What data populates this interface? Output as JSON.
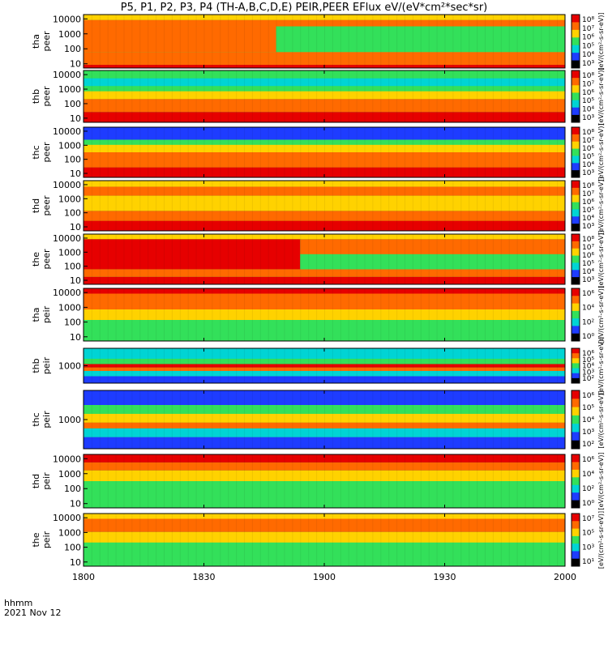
{
  "figure": {
    "title": "P5, P1, P2, P3, P4 (TH-A,B,C,D,E) PEIR,PEER EFlux eV/(eV*cm²*sec*sr)",
    "time_label": "hhmm",
    "date_label": "2021 Nov 12"
  },
  "colorbar_unit": "[eV/(cm²-s-sr-eV)]",
  "colors": {
    "red": "#e60000",
    "orange": "#ff6a00",
    "yellow": "#ffd200",
    "green": "#33e05a",
    "cyan": "#00d4d4",
    "blue": "#1e3cff",
    "black": "#000000"
  },
  "chart_data": [
    {
      "type": "heatmap",
      "name": "tha peer",
      "ylabel": [
        "tha",
        "peer"
      ],
      "ytick_labels": [
        "10",
        "100",
        "1000",
        "10000"
      ],
      "colorbar_ticks": [
        "10³",
        "10⁴",
        "10⁵",
        "10⁶",
        "10⁷",
        "10⁸"
      ],
      "x": [
        "1800",
        "1830",
        "1900",
        "1930",
        "2000"
      ],
      "bands": [
        {
          "x": [
            0,
            100
          ],
          "y": [
            0,
            0.06
          ],
          "color": "red"
        },
        {
          "x": [
            0,
            100
          ],
          "y": [
            0.06,
            0.3
          ],
          "color": "orange"
        },
        {
          "x": [
            0,
            40
          ],
          "y": [
            0.3,
            0.78
          ],
          "color": "orange"
        },
        {
          "x": [
            40,
            100
          ],
          "y": [
            0.3,
            0.78
          ],
          "color": "green"
        },
        {
          "x": [
            0,
            100
          ],
          "y": [
            0.78,
            0.9
          ],
          "color": "orange"
        },
        {
          "x": [
            0,
            100
          ],
          "y": [
            0.9,
            1
          ],
          "color": "yellow"
        }
      ]
    },
    {
      "type": "heatmap",
      "name": "thb peer",
      "ylabel": [
        "thb",
        "peer"
      ],
      "ytick_labels": [
        "10",
        "100",
        "1000",
        "10000"
      ],
      "colorbar_ticks": [
        "10³",
        "10⁴",
        "10⁵",
        "10⁶",
        "10⁷",
        "10⁸"
      ],
      "x": [
        "1800",
        "1830",
        "1900",
        "1930",
        "2000"
      ],
      "bands": [
        {
          "x": [
            0,
            100
          ],
          "y": [
            0,
            0.2
          ],
          "color": "red"
        },
        {
          "x": [
            0,
            100
          ],
          "y": [
            0.2,
            0.45
          ],
          "color": "orange"
        },
        {
          "x": [
            0,
            100
          ],
          "y": [
            0.45,
            0.6
          ],
          "color": "yellow"
        },
        {
          "x": [
            0,
            100
          ],
          "y": [
            0.6,
            0.7
          ],
          "color": "green"
        },
        {
          "x": [
            0,
            100
          ],
          "y": [
            0.7,
            0.85
          ],
          "color": "cyan"
        },
        {
          "x": [
            0,
            100
          ],
          "y": [
            0.85,
            1
          ],
          "color": "green"
        }
      ]
    },
    {
      "type": "heatmap",
      "name": "thc peer",
      "ylabel": [
        "thc",
        "peer"
      ],
      "ytick_labels": [
        "10",
        "100",
        "1000",
        "10000"
      ],
      "colorbar_ticks": [
        "10³",
        "10⁴",
        "10⁵",
        "10⁶",
        "10⁷",
        "10⁸"
      ],
      "x": [
        "1800",
        "1830",
        "1900",
        "1930",
        "2000"
      ],
      "bands": [
        {
          "x": [
            0,
            100
          ],
          "y": [
            0,
            0.2
          ],
          "color": "red"
        },
        {
          "x": [
            0,
            100
          ],
          "y": [
            0.2,
            0.5
          ],
          "color": "orange"
        },
        {
          "x": [
            0,
            100
          ],
          "y": [
            0.5,
            0.65
          ],
          "color": "yellow"
        },
        {
          "x": [
            0,
            100
          ],
          "y": [
            0.65,
            0.75
          ],
          "color": "green"
        },
        {
          "x": [
            0,
            100
          ],
          "y": [
            0.75,
            1
          ],
          "color": "blue"
        }
      ]
    },
    {
      "type": "heatmap",
      "name": "thd peer",
      "ylabel": [
        "thd",
        "peer"
      ],
      "ytick_labels": [
        "10",
        "100",
        "1000",
        "10000"
      ],
      "colorbar_ticks": [
        "10³",
        "10⁴",
        "10⁵",
        "10⁶",
        "10⁷",
        "10⁸"
      ],
      "x": [
        "1800",
        "1830",
        "1900",
        "1930",
        "2000"
      ],
      "bands": [
        {
          "x": [
            0,
            100
          ],
          "y": [
            0,
            0.2
          ],
          "color": "red"
        },
        {
          "x": [
            0,
            100
          ],
          "y": [
            0.2,
            0.4
          ],
          "color": "orange"
        },
        {
          "x": [
            0,
            100
          ],
          "y": [
            0.4,
            0.7
          ],
          "color": "yellow"
        },
        {
          "x": [
            0,
            100
          ],
          "y": [
            0.7,
            0.88
          ],
          "color": "orange"
        },
        {
          "x": [
            0,
            100
          ],
          "y": [
            0.88,
            1
          ],
          "color": "yellow"
        }
      ]
    },
    {
      "type": "heatmap",
      "name": "the peer",
      "ylabel": [
        "the",
        "peer"
      ],
      "ytick_labels": [
        "10",
        "100",
        "1000",
        "10000"
      ],
      "colorbar_ticks": [
        "10³",
        "10⁴",
        "10⁵",
        "10⁶",
        "10⁷",
        "10⁸"
      ],
      "x": [
        "1800",
        "1830",
        "1900",
        "1930",
        "2000"
      ],
      "bands": [
        {
          "x": [
            0,
            100
          ],
          "y": [
            0,
            0.15
          ],
          "color": "red"
        },
        {
          "x": [
            0,
            100
          ],
          "y": [
            0.15,
            0.3
          ],
          "color": "orange"
        },
        {
          "x": [
            0,
            45
          ],
          "y": [
            0.3,
            0.9
          ],
          "color": "red"
        },
        {
          "x": [
            45,
            100
          ],
          "y": [
            0.3,
            0.6
          ],
          "color": "green"
        },
        {
          "x": [
            45,
            100
          ],
          "y": [
            0.6,
            0.9
          ],
          "color": "orange"
        },
        {
          "x": [
            0,
            100
          ],
          "y": [
            0.9,
            1
          ],
          "color": "yellow"
        }
      ]
    },
    {
      "type": "heatmap",
      "name": "tha peir",
      "ylabel": [
        "tha",
        "peir"
      ],
      "ytick_labels": [
        "10",
        "100",
        "1000",
        "10000"
      ],
      "colorbar_ticks": [
        "10⁰",
        "10²",
        "10⁴",
        "10⁶"
      ],
      "x": [
        "1800",
        "1830",
        "1900",
        "1930",
        "2000"
      ],
      "bands": [
        {
          "x": [
            0,
            100
          ],
          "y": [
            0,
            0.4
          ],
          "color": "green"
        },
        {
          "x": [
            0,
            100
          ],
          "y": [
            0.4,
            0.6
          ],
          "color": "yellow"
        },
        {
          "x": [
            0,
            100
          ],
          "y": [
            0.6,
            0.9
          ],
          "color": "orange"
        },
        {
          "x": [
            0,
            100
          ],
          "y": [
            0.9,
            1
          ],
          "color": "red"
        }
      ]
    },
    {
      "type": "heatmap",
      "name": "thb peir",
      "ylabel": [
        "thb",
        "peir"
      ],
      "ytick_labels": [
        "1000"
      ],
      "colorbar_ticks": [
        "10²",
        "10³",
        "10⁴",
        "10⁵",
        "10⁶"
      ],
      "x": [
        "1800",
        "1830",
        "1900",
        "1930",
        "2000"
      ],
      "bands": [
        {
          "x": [
            0,
            100
          ],
          "y": [
            0,
            0.2
          ],
          "color": "blue"
        },
        {
          "x": [
            0,
            100
          ],
          "y": [
            0.2,
            0.35
          ],
          "color": "cyan"
        },
        {
          "x": [
            0,
            100
          ],
          "y": [
            0.35,
            0.45
          ],
          "color": "orange"
        },
        {
          "x": [
            0,
            100
          ],
          "y": [
            0.45,
            0.55
          ],
          "color": "red"
        },
        {
          "x": [
            0,
            100
          ],
          "y": [
            0.55,
            0.7
          ],
          "color": "green"
        },
        {
          "x": [
            0,
            100
          ],
          "y": [
            0.7,
            1
          ],
          "color": "cyan"
        }
      ]
    },
    {
      "type": "heatmap",
      "name": "thc peir",
      "ylabel": [
        "thc",
        "peir"
      ],
      "ytick_labels": [
        "1000"
      ],
      "colorbar_ticks": [
        "10²",
        "10³",
        "10⁴",
        "10⁵",
        "10⁶"
      ],
      "x": [
        "1800",
        "1830",
        "1900",
        "1930",
        "2000"
      ],
      "bands": [
        {
          "x": [
            0,
            100
          ],
          "y": [
            0,
            0.2
          ],
          "color": "blue"
        },
        {
          "x": [
            0,
            100
          ],
          "y": [
            0.2,
            0.35
          ],
          "color": "cyan"
        },
        {
          "x": [
            0,
            100
          ],
          "y": [
            0.35,
            0.45
          ],
          "color": "orange"
        },
        {
          "x": [
            0,
            100
          ],
          "y": [
            0.45,
            0.6
          ],
          "color": "yellow"
        },
        {
          "x": [
            0,
            100
          ],
          "y": [
            0.6,
            0.75
          ],
          "color": "green"
        },
        {
          "x": [
            0,
            100
          ],
          "y": [
            0.75,
            1
          ],
          "color": "blue"
        }
      ]
    },
    {
      "type": "heatmap",
      "name": "thd peir",
      "ylabel": [
        "thd",
        "peir"
      ],
      "ytick_labels": [
        "10",
        "100",
        "1000",
        "10000"
      ],
      "colorbar_ticks": [
        "10⁰",
        "10²",
        "10⁴",
        "10⁶"
      ],
      "x": [
        "1800",
        "1830",
        "1900",
        "1930",
        "2000"
      ],
      "bands": [
        {
          "x": [
            0,
            100
          ],
          "y": [
            0,
            0.5
          ],
          "color": "green"
        },
        {
          "x": [
            0,
            100
          ],
          "y": [
            0.5,
            0.7
          ],
          "color": "yellow"
        },
        {
          "x": [
            0,
            100
          ],
          "y": [
            0.7,
            0.85
          ],
          "color": "orange"
        },
        {
          "x": [
            0,
            100
          ],
          "y": [
            0.85,
            1
          ],
          "color": "red"
        }
      ]
    },
    {
      "type": "heatmap",
      "name": "the peir",
      "ylabel": [
        "the",
        "peir"
      ],
      "ytick_labels": [
        "10",
        "100",
        "1000",
        "10000"
      ],
      "colorbar_ticks": [
        "10¹",
        "10³",
        "10⁵",
        "10⁷"
      ],
      "x": [
        "1800",
        "1830",
        "1900",
        "1930",
        "2000"
      ],
      "bands": [
        {
          "x": [
            0,
            100
          ],
          "y": [
            0,
            0.45
          ],
          "color": "green"
        },
        {
          "x": [
            0,
            100
          ],
          "y": [
            0.45,
            0.65
          ],
          "color": "yellow"
        },
        {
          "x": [
            0,
            100
          ],
          "y": [
            0.65,
            0.9
          ],
          "color": "orange"
        },
        {
          "x": [
            0,
            100
          ],
          "y": [
            0.9,
            1
          ],
          "color": "yellow"
        }
      ]
    }
  ]
}
